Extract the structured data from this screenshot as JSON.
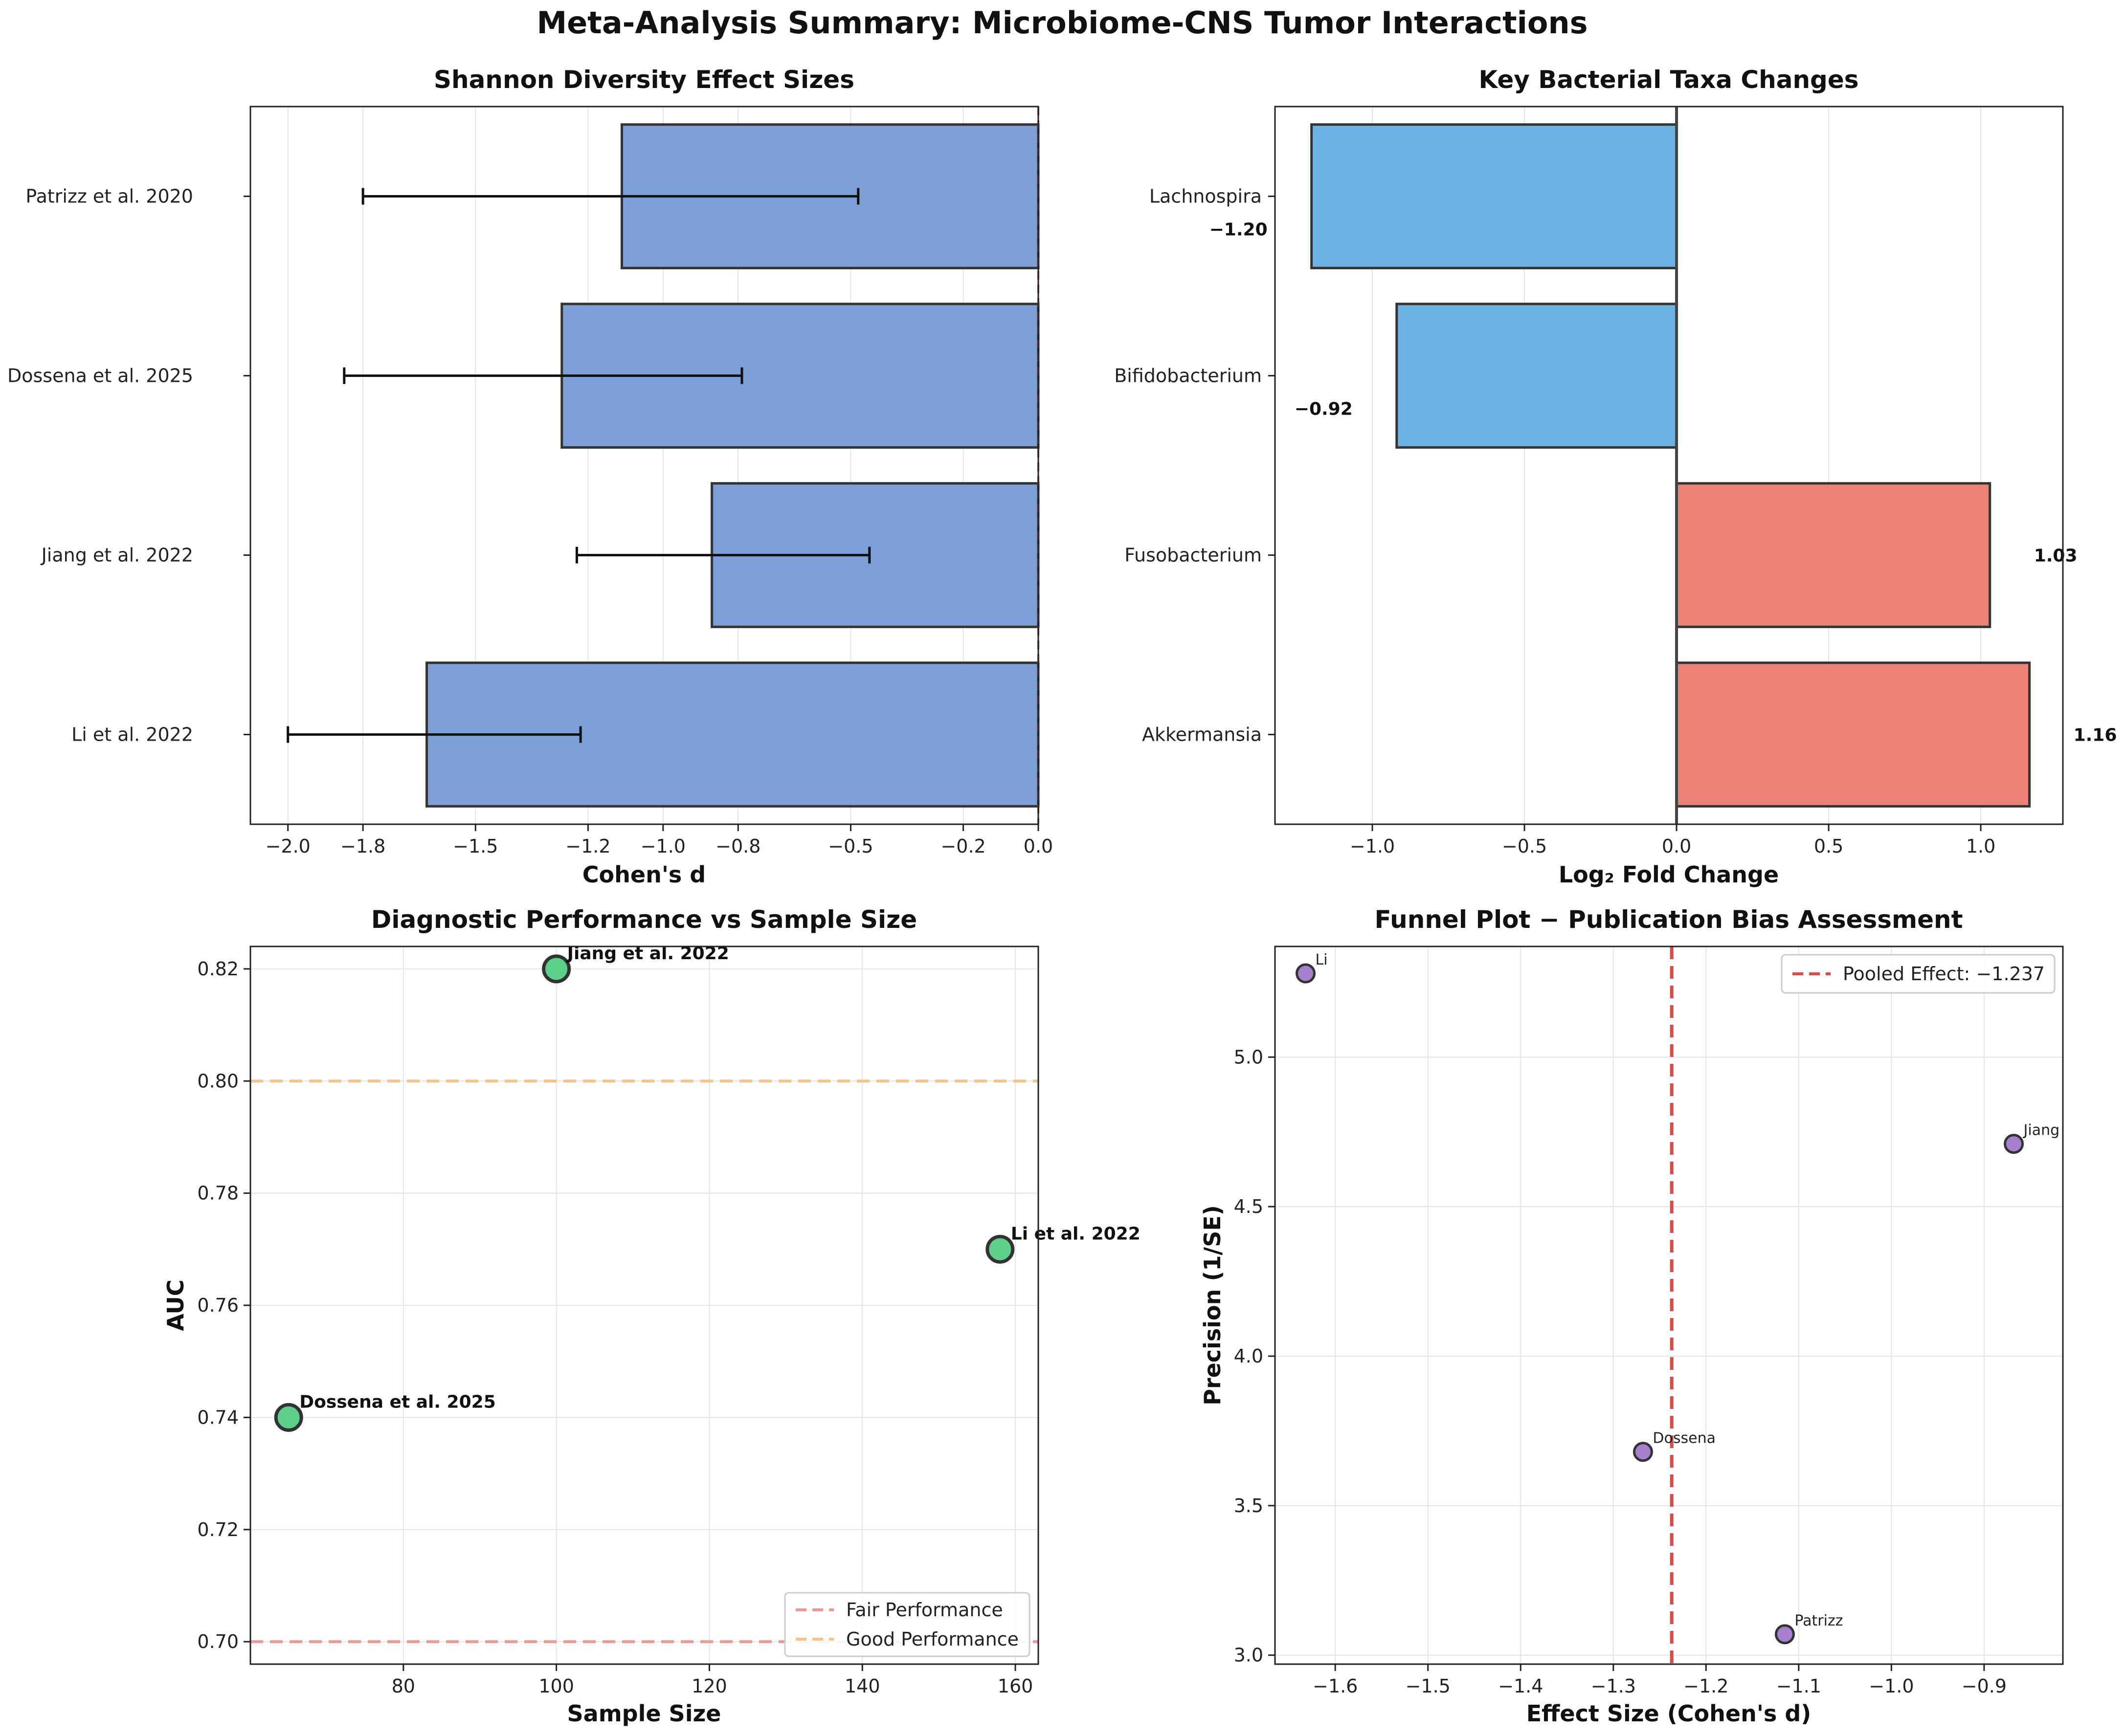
{
  "figure_title": "Meta-Analysis Summary: Microbiome-CNS Tumor Interactions",
  "chart_data": [
    {
      "type": "bar",
      "orientation": "horizontal",
      "title": "Shannon Diversity Effect Sizes",
      "xlabel": "Cohen's d",
      "ylabel": "",
      "xlim": [
        -2.1,
        0.0
      ],
      "xticks": [
        -2.0,
        -1.8,
        -1.5,
        -1.2,
        -1.0,
        -0.8,
        -0.5,
        -0.2,
        0.0
      ],
      "xtick_labels": [
        "−2.0",
        "−1.8",
        "−1.5",
        "−1.2",
        "−1.0",
        "−0.8",
        "−0.5",
        "−0.2",
        "0.0"
      ],
      "categories": [
        "Patrizz et al. 2020",
        "Dossena et al. 2025",
        "Jiang et al. 2022",
        "Li et al. 2022"
      ],
      "values": [
        -1.11,
        -1.27,
        -0.87,
        -1.63
      ],
      "ci_lower": [
        -1.8,
        -1.85,
        -1.23,
        -2.0
      ],
      "ci_upper": [
        -0.48,
        -0.79,
        -0.45,
        -1.22
      ],
      "bar_color": "#7b9fd6",
      "reference_line": 0.0,
      "grid": true
    },
    {
      "type": "bar",
      "orientation": "horizontal",
      "title": "Key Bacterial Taxa Changes",
      "xlabel": "Log₂ Fold Change",
      "ylabel": "",
      "xlim": [
        -1.32,
        1.27
      ],
      "xticks": [
        -1.0,
        -0.5,
        0.0,
        0.5,
        1.0
      ],
      "xtick_labels": [
        "−1.0",
        "−0.5",
        "0.0",
        "0.5",
        "1.0"
      ],
      "categories": [
        "Lachnospira",
        "Bifidobacterium",
        "Fusobacterium",
        "Akkermansia"
      ],
      "values": [
        -1.2,
        -0.92,
        1.03,
        1.16
      ],
      "value_labels": [
        "−1.20",
        "−0.92",
        "1.03",
        "1.16"
      ],
      "colors": {
        "negative": "#6bb3e2",
        "positive": "#ec8275"
      },
      "grid": true
    },
    {
      "type": "scatter",
      "title": "Diagnostic Performance vs Sample Size",
      "xlabel": "Sample Size",
      "ylabel": "AUC",
      "xlim": [
        60,
        163
      ],
      "ylim": [
        0.696,
        0.824
      ],
      "xticks": [
        80,
        100,
        120,
        140,
        160
      ],
      "xtick_labels": [
        "80",
        "100",
        "120",
        "140",
        "160"
      ],
      "yticks": [
        0.7,
        0.72,
        0.74,
        0.76,
        0.78,
        0.8,
        0.82
      ],
      "ytick_labels": [
        "0.70",
        "0.72",
        "0.74",
        "0.76",
        "0.78",
        "0.80",
        "0.82"
      ],
      "points": [
        {
          "label": "Jiang et al. 2022",
          "x": 100,
          "y": 0.82
        },
        {
          "label": "Li et al. 2022",
          "x": 158,
          "y": 0.77
        },
        {
          "label": "Dossena et al. 2025",
          "x": 65,
          "y": 0.74
        }
      ],
      "point_color": "#5dd08c",
      "hlines": [
        {
          "label": "Fair Performance",
          "y": 0.7,
          "color": "#ec9a94"
        },
        {
          "label": "Good Performance",
          "y": 0.8,
          "color": "#f3c58a"
        }
      ],
      "legend_position": "lower-right",
      "grid": true
    },
    {
      "type": "scatter",
      "title": "Funnel Plot − Publication Bias Assessment",
      "xlabel": "Effect Size (Cohen's d)",
      "ylabel": "Precision (1/SE)",
      "xlim": [
        -1.665,
        -0.815
      ],
      "ylim": [
        2.97,
        5.37
      ],
      "xticks": [
        -1.6,
        -1.5,
        -1.4,
        -1.3,
        -1.2,
        -1.1,
        -1.0,
        -0.9
      ],
      "xtick_labels": [
        "−1.6",
        "−1.5",
        "−1.4",
        "−1.3",
        "−1.2",
        "−1.1",
        "−1.0",
        "−0.9"
      ],
      "yticks": [
        3.0,
        3.5,
        4.0,
        4.5,
        5.0
      ],
      "ytick_labels": [
        "3.0",
        "3.5",
        "4.0",
        "4.5",
        "5.0"
      ],
      "points": [
        {
          "label": "Li",
          "x": -1.632,
          "y": 5.28
        },
        {
          "label": "Jiang",
          "x": -0.868,
          "y": 4.71
        },
        {
          "label": "Dossena",
          "x": -1.268,
          "y": 3.68
        },
        {
          "label": "Patrizz",
          "x": -1.115,
          "y": 3.07
        }
      ],
      "point_color": "#a77fcf",
      "vline": {
        "label": "Pooled Effect: −1.237",
        "x": -1.237,
        "color": "#e04848"
      },
      "legend_position": "top-right",
      "grid": true
    }
  ]
}
